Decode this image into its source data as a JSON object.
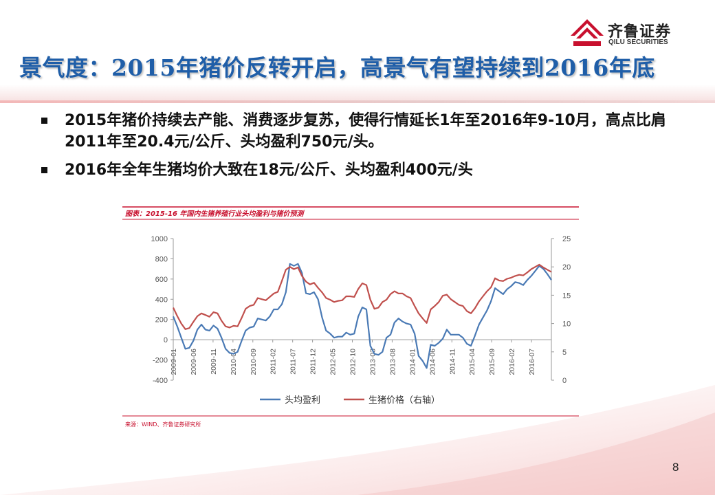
{
  "slide": {
    "title": "景气度：2015年猪价反转开启，高景气有望持续到2016年底",
    "page_number": "8",
    "bullets": [
      "2015年猪价持续去产能、消费逐步复苏，使得行情延长1年至2016年9-10月，高点比肩2011年至20.4元/公斤、头均盈利750元/头。",
      "2016年全年生猪均价大致在18元/公斤、头均盈利400元/头"
    ]
  },
  "logo": {
    "name_cn": "齐鲁证券",
    "name_en": "QILU SECURITIES"
  },
  "colors": {
    "title_blue": "#1f5ea8",
    "series_blue": "#4a7ab5",
    "series_red": "#c0504d",
    "accent_red": "#c8102e"
  },
  "chart_data": {
    "type": "line",
    "title": "图表：2015-16 年国内生猪养殖行业头均盈利与猪价预测",
    "source": "来源：WIND、齐鲁证券研究所",
    "x_tick_labels": [
      "2009-01",
      "2009-06",
      "2009-11",
      "2010-04",
      "2010-09",
      "2011-02",
      "2011-07",
      "2011-12",
      "2012-05",
      "2012-10",
      "2013-03",
      "2013-08",
      "2014-01",
      "2014-06",
      "2014-11",
      "2015-04",
      "2015-09",
      "2016-02",
      "2016-07"
    ],
    "y_left_ticks": [
      "1000",
      "800",
      "600",
      "400",
      "200",
      "0",
      "-200",
      "-400"
    ],
    "y_right_ticks": [
      "25",
      "20",
      "15",
      "10",
      "5",
      "0"
    ],
    "y_left_range": [
      -400,
      1000
    ],
    "y_right_range": [
      0,
      25
    ],
    "x_range": [
      "2009-01",
      "2016-12"
    ],
    "grid": false,
    "legend_position": "bottom",
    "series": [
      {
        "name": "头均盈利",
        "axis": "left",
        "color": "#4a7ab5",
        "values": [
          230,
          130,
          20,
          -90,
          -80,
          -10,
          100,
          150,
          100,
          90,
          140,
          110,
          20,
          -90,
          -130,
          -140,
          -120,
          -10,
          90,
          120,
          130,
          210,
          200,
          190,
          230,
          300,
          300,
          350,
          470,
          750,
          730,
          750,
          660,
          460,
          450,
          470,
          400,
          220,
          90,
          60,
          20,
          30,
          30,
          70,
          50,
          60,
          230,
          320,
          300,
          -60,
          -140,
          -150,
          -120,
          20,
          50,
          170,
          210,
          180,
          160,
          150,
          60,
          -160,
          -210,
          -280,
          -50,
          -60,
          -30,
          10,
          100,
          50,
          50,
          50,
          20,
          -40,
          -60,
          40,
          150,
          220,
          290,
          380,
          510,
          480,
          450,
          500,
          530,
          570,
          560,
          540,
          590,
          630,
          680,
          730,
          700,
          650,
          590
        ]
      },
      {
        "name": "生猪价格（右轴）",
        "axis": "right",
        "color": "#c0504d",
        "values": [
          12.8,
          11.3,
          10.0,
          9.0,
          9.2,
          10.3,
          11.3,
          11.8,
          11.5,
          11.2,
          12.0,
          11.8,
          10.5,
          9.5,
          9.3,
          9.6,
          9.5,
          11.0,
          12.6,
          13.1,
          13.3,
          14.5,
          14.3,
          14.1,
          14.7,
          15.3,
          15.6,
          17.5,
          19.5,
          20.0,
          19.6,
          19.9,
          18.4,
          17.4,
          16.9,
          17.2,
          16.3,
          15.5,
          14.5,
          14.2,
          13.8,
          14.0,
          14.1,
          14.8,
          14.8,
          14.7,
          16.1,
          17.1,
          16.8,
          14.2,
          12.6,
          12.8,
          13.8,
          14.2,
          15.2,
          15.7,
          15.3,
          15.3,
          14.8,
          14.5,
          13.1,
          11.8,
          10.9,
          10.1,
          12.5,
          13.1,
          13.8,
          14.9,
          15.1,
          14.3,
          13.8,
          13.3,
          13.1,
          12.2,
          11.8,
          12.7,
          13.9,
          14.8,
          15.7,
          16.4,
          18.0,
          17.6,
          17.5,
          17.9,
          18.1,
          18.4,
          18.6,
          18.5,
          19.0,
          19.6,
          20.0,
          20.4,
          19.9,
          19.5,
          19.1
        ]
      }
    ]
  }
}
